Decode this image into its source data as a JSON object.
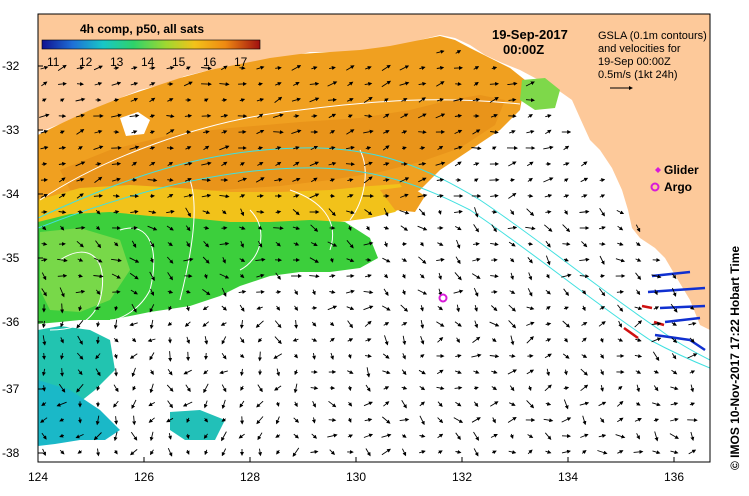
{
  "colorbar": {
    "title": "4h comp, p50, all sats",
    "ticks": [
      "11",
      "12",
      "13",
      "14",
      "15",
      "16",
      "17"
    ],
    "colors": [
      "#1a1aa0",
      "#1e6fd6",
      "#18c7c7",
      "#2fd36a",
      "#8ad83a",
      "#f2c21a",
      "#ef8a12",
      "#d2361a",
      "#8a1010"
    ]
  },
  "date": {
    "line1": "19-Sep-2017",
    "line2": "00:00Z"
  },
  "legend_text": {
    "line1": "GSLA (0.1m contours)",
    "line2": "and velocities for",
    "line3": "19-Sep 00:00Z",
    "line4": "0.5m/s (1kt 24h)"
  },
  "symbols": {
    "glider": "Glider",
    "argo": "Argo",
    "glider_color": "#d81bd8",
    "argo_color": "#d81bd8"
  },
  "credit": "© IMOS 10-Nov-2017 17:22 Hobart Time",
  "x_axis": {
    "ticks": [
      "124",
      "126",
      "128",
      "130",
      "132",
      "134",
      "136"
    ],
    "min": 124,
    "max": 136.7
  },
  "y_axis": {
    "ticks": [
      "-32",
      "-33",
      "-34",
      "-35",
      "-36",
      "-37",
      "-38"
    ],
    "min": -38.1,
    "max": -31.5
  },
  "colors": {
    "land": "#fdc99a",
    "ocean": "#ffffff",
    "contour": "#ffffff",
    "isobath": "#40e0e0"
  },
  "argo_position": {
    "lon": 131.6,
    "lat": -35.6
  },
  "glider_tracks": {
    "blue": "#1030d0",
    "red": "#d01010"
  }
}
